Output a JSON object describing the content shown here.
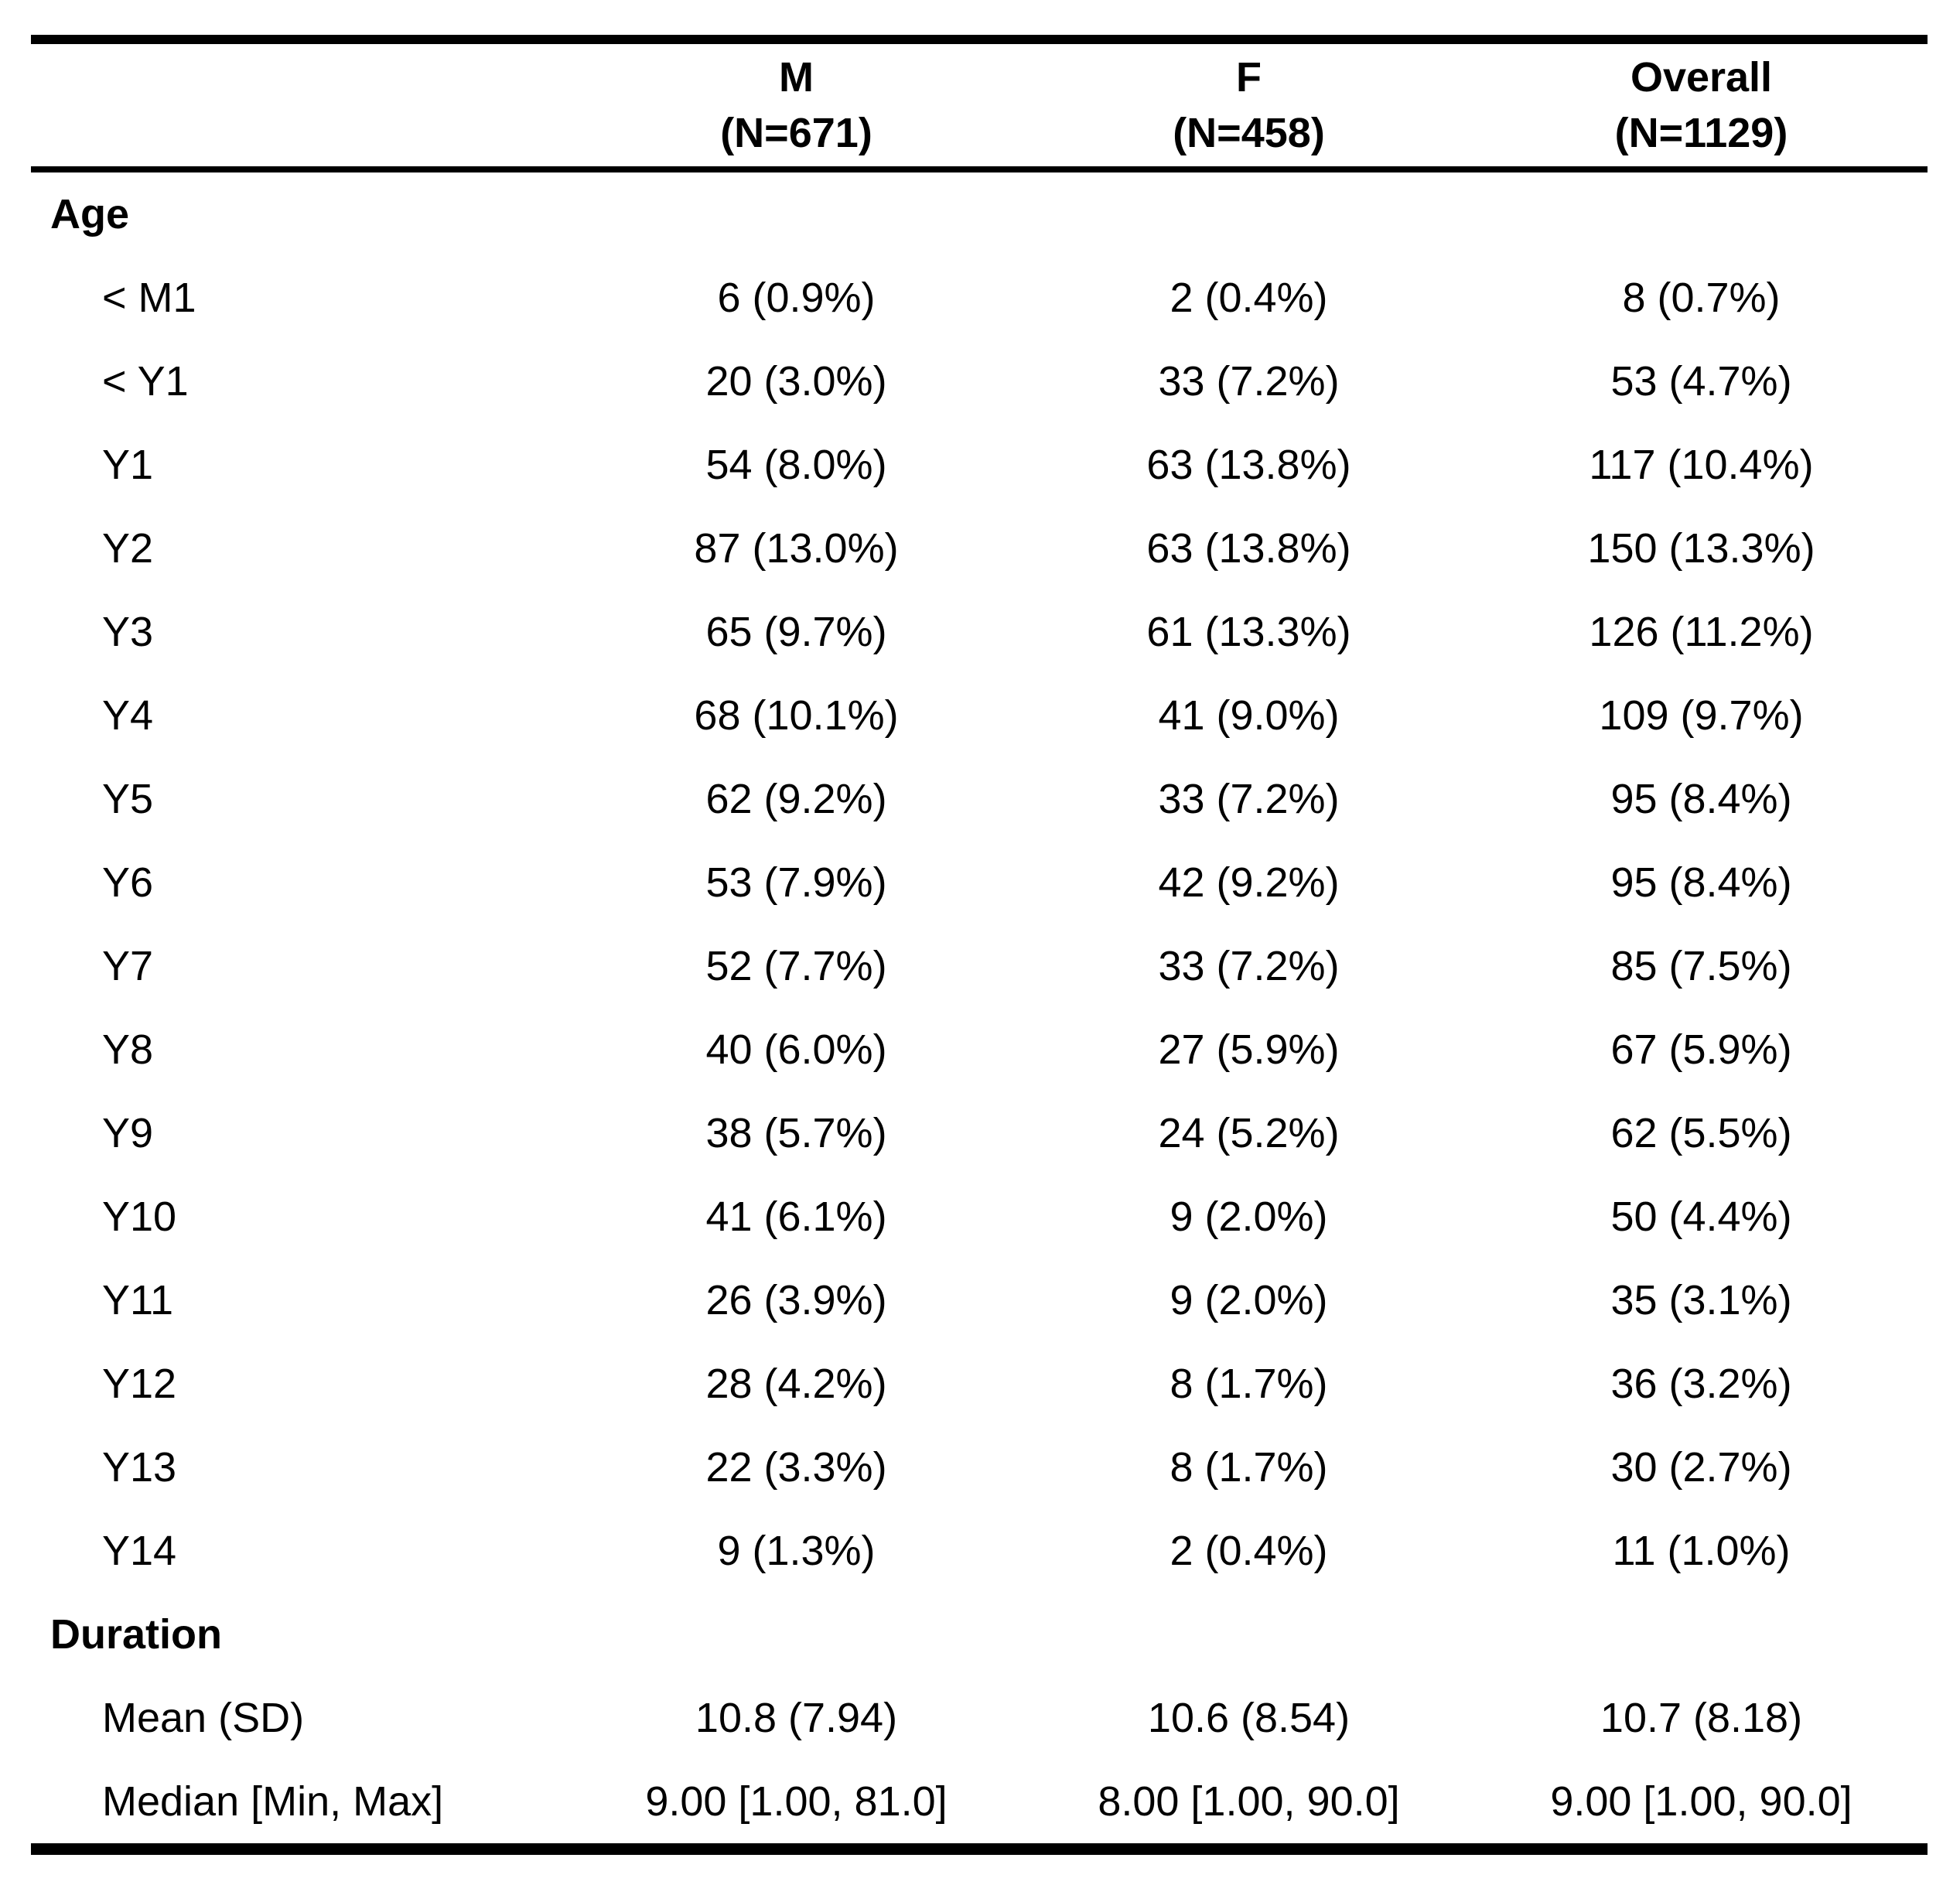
{
  "chart_data": {
    "type": "table",
    "columns": [
      {
        "label": "M",
        "sublabel": "(N=671)"
      },
      {
        "label": "F",
        "sublabel": "(N=458)"
      },
      {
        "label": "Overall",
        "sublabel": "(N=1129)"
      }
    ],
    "sections": [
      {
        "title": "Age",
        "rows": [
          {
            "label": "< M1",
            "values": [
              "6 (0.9%)",
              "2 (0.4%)",
              "8 (0.7%)"
            ]
          },
          {
            "label": "< Y1",
            "values": [
              "20 (3.0%)",
              "33 (7.2%)",
              "53 (4.7%)"
            ]
          },
          {
            "label": "Y1",
            "values": [
              "54 (8.0%)",
              "63 (13.8%)",
              "117 (10.4%)"
            ]
          },
          {
            "label": "Y2",
            "values": [
              "87 (13.0%)",
              "63 (13.8%)",
              "150 (13.3%)"
            ]
          },
          {
            "label": "Y3",
            "values": [
              "65 (9.7%)",
              "61 (13.3%)",
              "126 (11.2%)"
            ]
          },
          {
            "label": "Y4",
            "values": [
              "68 (10.1%)",
              "41 (9.0%)",
              "109 (9.7%)"
            ]
          },
          {
            "label": "Y5",
            "values": [
              "62 (9.2%)",
              "33 (7.2%)",
              "95 (8.4%)"
            ]
          },
          {
            "label": "Y6",
            "values": [
              "53 (7.9%)",
              "42 (9.2%)",
              "95 (8.4%)"
            ]
          },
          {
            "label": "Y7",
            "values": [
              "52 (7.7%)",
              "33 (7.2%)",
              "85 (7.5%)"
            ]
          },
          {
            "label": "Y8",
            "values": [
              "40 (6.0%)",
              "27 (5.9%)",
              "67 (5.9%)"
            ]
          },
          {
            "label": "Y9",
            "values": [
              "38 (5.7%)",
              "24 (5.2%)",
              "62 (5.5%)"
            ]
          },
          {
            "label": "Y10",
            "values": [
              "41 (6.1%)",
              "9 (2.0%)",
              "50 (4.4%)"
            ]
          },
          {
            "label": "Y11",
            "values": [
              "26 (3.9%)",
              "9 (2.0%)",
              "35 (3.1%)"
            ]
          },
          {
            "label": "Y12",
            "values": [
              "28 (4.2%)",
              "8 (1.7%)",
              "36 (3.2%)"
            ]
          },
          {
            "label": "Y13",
            "values": [
              "22 (3.3%)",
              "8 (1.7%)",
              "30 (2.7%)"
            ]
          },
          {
            "label": "Y14",
            "values": [
              "9 (1.3%)",
              "2 (0.4%)",
              "11 (1.0%)"
            ]
          }
        ]
      },
      {
        "title": "Duration",
        "rows": [
          {
            "label": "Mean (SD)",
            "values": [
              "10.8 (7.94)",
              "10.6 (8.54)",
              "10.7 (8.18)"
            ]
          },
          {
            "label": "Median [Min, Max]",
            "values": [
              "9.00 [1.00, 81.0]",
              "8.00 [1.00, 90.0]",
              "9.00 [1.00, 90.0]"
            ]
          }
        ]
      }
    ],
    "layout": {
      "border_color": "#000000",
      "background": "#ffffff",
      "grid": "horizontal-rules-only"
    }
  }
}
